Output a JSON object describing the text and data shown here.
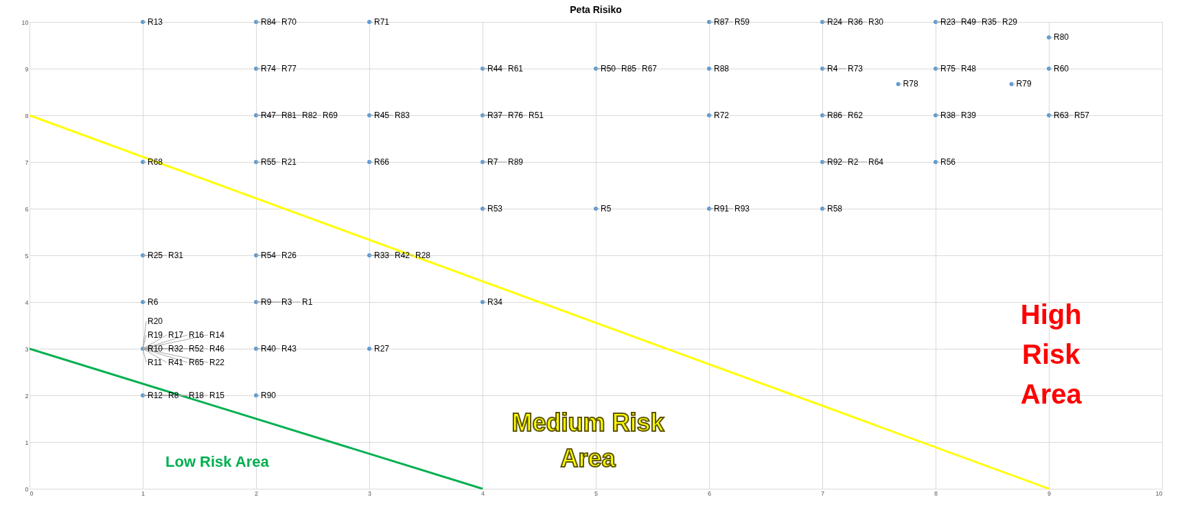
{
  "chart_data": {
    "type": "scatter",
    "title": "Peta Risiko",
    "xlim": [
      0,
      10
    ],
    "ylim": [
      0,
      10
    ],
    "xticks": [
      0,
      1,
      2,
      3,
      4,
      5,
      6,
      7,
      8,
      9,
      10
    ],
    "yticks": [
      0,
      1,
      2,
      3,
      4,
      5,
      6,
      7,
      8,
      9,
      10
    ],
    "grid": true,
    "marker": "circle",
    "series": [
      {
        "color": "#5b9bd5",
        "x": [
          1,
          1,
          1,
          1,
          1,
          1,
          2,
          2,
          2,
          2,
          2,
          2,
          2,
          2,
          3,
          3,
          3,
          3,
          3,
          4,
          4,
          4,
          4,
          4,
          5,
          5,
          6,
          6,
          6,
          6,
          7,
          7,
          7,
          7,
          7,
          7.67,
          8,
          8,
          8,
          8,
          8.67,
          9,
          9,
          9
        ],
        "values": [
          10,
          7,
          5,
          4,
          3,
          2,
          10,
          9,
          8,
          7,
          5,
          4,
          3,
          2,
          10,
          8,
          7,
          5,
          3,
          9,
          8,
          7,
          6,
          4,
          9,
          6,
          10,
          9,
          8,
          6,
          10,
          9,
          8,
          7,
          6,
          8.67,
          10,
          9,
          8,
          7,
          8.67,
          9.67,
          9,
          8
        ]
      },
      {
        "type": "line",
        "marker": "none",
        "color": "#ffff00",
        "x": [
          0,
          9
        ],
        "values": [
          8,
          0
        ]
      },
      {
        "type": "line",
        "marker": "none",
        "color": "#00b050",
        "x": [
          0,
          4
        ],
        "values": [
          3,
          0
        ]
      }
    ],
    "annotations": [
      "Low Risk Area",
      "Medium Risk Area",
      "High Risk Area",
      {
        "text": "R13",
        "x": 1,
        "y": 10
      },
      {
        "text": "R68",
        "x": 1,
        "y": 7
      },
      {
        "text": "R25",
        "x": 1,
        "y": 5
      },
      {
        "text": "R31",
        "x": 1,
        "y": 5
      },
      {
        "text": "R6",
        "x": 1,
        "y": 4
      },
      {
        "text": "R10",
        "x": 1,
        "y": 3
      },
      {
        "text": "R32",
        "x": 1,
        "y": 3
      },
      {
        "text": "R52",
        "x": 1,
        "y": 3
      },
      {
        "text": "R46",
        "x": 1,
        "y": 3
      },
      {
        "text": "R19",
        "x": 1,
        "y": 3
      },
      {
        "text": "R17",
        "x": 1,
        "y": 3
      },
      {
        "text": "R16",
        "x": 1,
        "y": 3
      },
      {
        "text": "R14",
        "x": 1,
        "y": 3
      },
      {
        "text": "R11",
        "x": 1,
        "y": 3
      },
      {
        "text": "R41",
        "x": 1,
        "y": 3
      },
      {
        "text": "R65",
        "x": 1,
        "y": 3
      },
      {
        "text": "R22",
        "x": 1,
        "y": 3
      },
      {
        "text": "R20",
        "x": 1,
        "y": 3
      },
      {
        "text": "R12",
        "x": 1,
        "y": 2
      },
      {
        "text": "R8",
        "x": 1,
        "y": 2
      },
      {
        "text": "R18",
        "x": 1,
        "y": 2
      },
      {
        "text": "R15",
        "x": 1,
        "y": 2
      },
      {
        "text": "R84",
        "x": 2,
        "y": 10
      },
      {
        "text": "R70",
        "x": 2,
        "y": 10
      },
      {
        "text": "R74",
        "x": 2,
        "y": 9
      },
      {
        "text": "R77",
        "x": 2,
        "y": 9
      },
      {
        "text": "R47",
        "x": 2,
        "y": 8
      },
      {
        "text": "R81",
        "x": 2,
        "y": 8
      },
      {
        "text": "R82",
        "x": 2,
        "y": 8
      },
      {
        "text": "R69",
        "x": 2,
        "y": 8
      },
      {
        "text": "R55",
        "x": 2,
        "y": 7
      },
      {
        "text": "R21",
        "x": 2,
        "y": 7
      },
      {
        "text": "R54",
        "x": 2,
        "y": 5
      },
      {
        "text": "R26",
        "x": 2,
        "y": 5
      },
      {
        "text": "R9",
        "x": 2,
        "y": 4
      },
      {
        "text": "R3",
        "x": 2,
        "y": 4
      },
      {
        "text": "R1",
        "x": 2,
        "y": 4
      },
      {
        "text": "R40",
        "x": 2,
        "y": 3
      },
      {
        "text": "R43",
        "x": 2,
        "y": 3
      },
      {
        "text": "R90",
        "x": 2,
        "y": 2
      },
      {
        "text": "R71",
        "x": 3,
        "y": 10
      },
      {
        "text": "R45",
        "x": 3,
        "y": 8
      },
      {
        "text": "R83",
        "x": 3,
        "y": 8
      },
      {
        "text": "R66",
        "x": 3,
        "y": 7
      },
      {
        "text": "R33",
        "x": 3,
        "y": 5
      },
      {
        "text": "R42",
        "x": 3,
        "y": 5
      },
      {
        "text": "R28",
        "x": 3,
        "y": 5
      },
      {
        "text": "R27",
        "x": 3,
        "y": 3
      },
      {
        "text": "R44",
        "x": 4,
        "y": 9
      },
      {
        "text": "R61",
        "x": 4,
        "y": 9
      },
      {
        "text": "R37",
        "x": 4,
        "y": 8
      },
      {
        "text": "R76",
        "x": 4,
        "y": 8
      },
      {
        "text": "R51",
        "x": 4,
        "y": 8
      },
      {
        "text": "R7",
        "x": 4,
        "y": 7
      },
      {
        "text": "R89",
        "x": 4,
        "y": 7
      },
      {
        "text": "R53",
        "x": 4,
        "y": 6
      },
      {
        "text": "R34",
        "x": 4,
        "y": 4
      },
      {
        "text": "R50",
        "x": 5,
        "y": 9
      },
      {
        "text": "R85",
        "x": 5,
        "y": 9
      },
      {
        "text": "R67",
        "x": 5,
        "y": 9
      },
      {
        "text": "R5",
        "x": 5,
        "y": 6
      },
      {
        "text": "R87",
        "x": 6,
        "y": 10
      },
      {
        "text": "R59",
        "x": 6,
        "y": 10
      },
      {
        "text": "R88",
        "x": 6,
        "y": 9
      },
      {
        "text": "R72",
        "x": 6,
        "y": 8
      },
      {
        "text": "R91",
        "x": 6,
        "y": 6
      },
      {
        "text": "R93",
        "x": 6,
        "y": 6
      },
      {
        "text": "R24",
        "x": 7,
        "y": 10
      },
      {
        "text": "R36",
        "x": 7,
        "y": 10
      },
      {
        "text": "R30",
        "x": 7,
        "y": 10
      },
      {
        "text": "R4",
        "x": 7,
        "y": 9
      },
      {
        "text": "R73",
        "x": 7,
        "y": 9
      },
      {
        "text": "R86",
        "x": 7,
        "y": 8
      },
      {
        "text": "R62",
        "x": 7,
        "y": 8
      },
      {
        "text": "R92",
        "x": 7,
        "y": 7
      },
      {
        "text": "R2",
        "x": 7,
        "y": 7
      },
      {
        "text": "R64",
        "x": 7,
        "y": 7
      },
      {
        "text": "R58",
        "x": 7,
        "y": 6
      },
      {
        "text": "R78",
        "x": 7.67,
        "y": 8.67
      },
      {
        "text": "R23",
        "x": 8,
        "y": 10
      },
      {
        "text": "R49",
        "x": 8,
        "y": 10
      },
      {
        "text": "R35",
        "x": 8,
        "y": 10
      },
      {
        "text": "R29",
        "x": 8,
        "y": 10
      },
      {
        "text": "R75",
        "x": 8,
        "y": 9
      },
      {
        "text": "R48",
        "x": 8,
        "y": 9
      },
      {
        "text": "R38",
        "x": 8,
        "y": 8
      },
      {
        "text": "R39",
        "x": 8,
        "y": 8
      },
      {
        "text": "R56",
        "x": 8,
        "y": 7
      },
      {
        "text": "R79",
        "x": 8.67,
        "y": 8.67
      },
      {
        "text": "R80",
        "x": 9,
        "y": 9.67
      },
      {
        "text": "R60",
        "x": 9,
        "y": 9
      },
      {
        "text": "R63",
        "x": 9,
        "y": 8
      },
      {
        "text": "R57",
        "x": 9,
        "y": 8
      }
    ]
  }
}
